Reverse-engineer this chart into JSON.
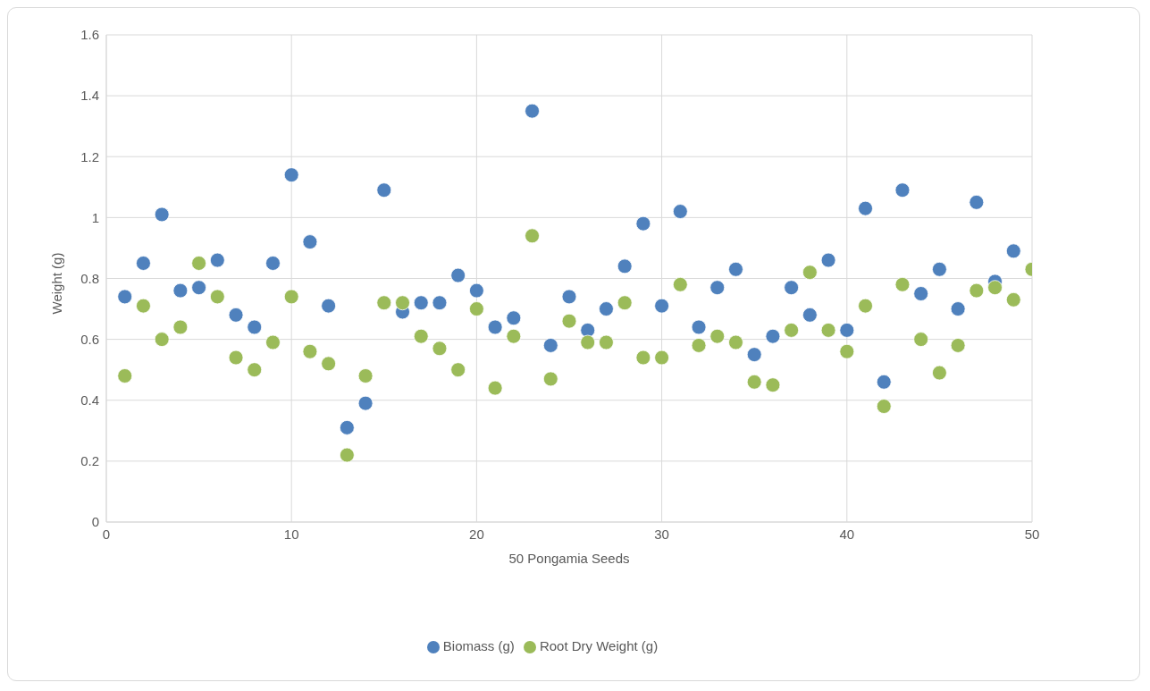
{
  "chart_data": {
    "type": "scatter",
    "xlabel": "50 Pongamia Seeds",
    "ylabel": "Weight (g)",
    "x": [
      1,
      2,
      3,
      4,
      5,
      6,
      7,
      8,
      9,
      10,
      11,
      12,
      13,
      14,
      15,
      16,
      17,
      18,
      19,
      20,
      21,
      22,
      23,
      24,
      25,
      26,
      27,
      28,
      29,
      30,
      31,
      32,
      33,
      34,
      35,
      36,
      37,
      38,
      39,
      40,
      41,
      42,
      43,
      44,
      45,
      46,
      47,
      48,
      49,
      50
    ],
    "series": [
      {
        "name": "Biomass (g)",
        "color": "#4f81bd",
        "values": [
          0.74,
          0.85,
          1.01,
          0.76,
          0.77,
          0.86,
          0.68,
          0.64,
          0.85,
          1.14,
          0.92,
          0.71,
          0.31,
          0.39,
          1.09,
          0.69,
          0.72,
          0.72,
          0.81,
          0.76,
          0.64,
          0.67,
          1.35,
          0.58,
          0.74,
          0.63,
          0.7,
          0.84,
          0.98,
          0.71,
          1.02,
          0.64,
          0.77,
          0.83,
          0.55,
          0.61,
          0.77,
          0.68,
          0.86,
          0.63,
          1.03,
          0.46,
          1.09,
          0.75,
          0.83,
          0.7,
          1.05,
          0.79,
          0.89,
          null
        ]
      },
      {
        "name": "Root Dry Weight (g)",
        "color": "#9bbb59",
        "values": [
          0.48,
          0.71,
          0.6,
          0.64,
          0.85,
          0.74,
          0.54,
          0.5,
          0.59,
          0.74,
          0.56,
          0.52,
          0.22,
          0.48,
          0.72,
          0.72,
          0.61,
          0.57,
          0.5,
          0.7,
          0.44,
          0.61,
          0.94,
          0.47,
          0.66,
          0.59,
          0.59,
          0.72,
          0.54,
          0.54,
          0.78,
          0.58,
          0.61,
          0.59,
          0.46,
          0.45,
          0.63,
          0.82,
          0.63,
          0.56,
          0.71,
          0.38,
          0.78,
          0.6,
          0.49,
          0.58,
          0.76,
          0.77,
          0.73,
          0.83
        ]
      }
    ],
    "xlim": [
      0,
      50
    ],
    "xticks": [
      0,
      10,
      20,
      30,
      40,
      50
    ],
    "ylim": [
      0,
      1.6
    ],
    "yticks": [
      0,
      0.2,
      0.4,
      0.6,
      0.8,
      1,
      1.2,
      1.4,
      1.6
    ],
    "grid": true,
    "legend": "bottom",
    "marker": "circle"
  }
}
